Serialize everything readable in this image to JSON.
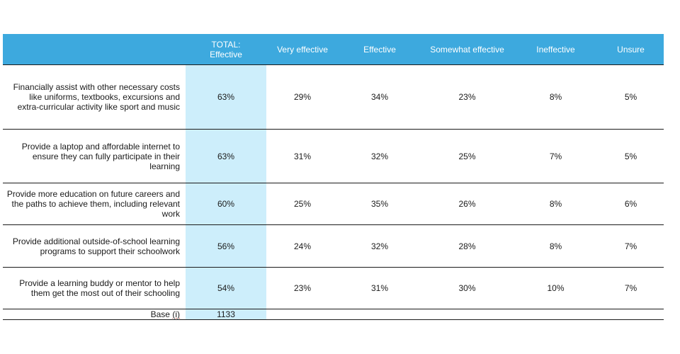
{
  "chart_data": {
    "type": "table",
    "columns": [
      "",
      "TOTAL:\nEffective",
      "Very effective",
      "Effective",
      "Somewhat effective",
      "Ineffective",
      "Unsure"
    ],
    "rows": [
      {
        "label": "Financially assist with other necessary costs like uniforms, textbooks, excursions and extra-curricular activity like sport and music",
        "values": [
          "63%",
          "29%",
          "34%",
          "23%",
          "8%",
          "5%"
        ]
      },
      {
        "label": "Provide a laptop and affordable internet to ensure they can fully participate in their learning",
        "values": [
          "63%",
          "31%",
          "32%",
          "25%",
          "7%",
          "5%"
        ]
      },
      {
        "label": "Provide more education on future careers and the paths to achieve them, including relevant work",
        "values": [
          "60%",
          "25%",
          "35%",
          "26%",
          "8%",
          "6%"
        ]
      },
      {
        "label": "Provide additional outside-of-school learning programs to support their schoolwork",
        "values": [
          "56%",
          "24%",
          "32%",
          "28%",
          "8%",
          "7%"
        ]
      },
      {
        "label": "Provide a learning buddy or mentor to help them get the most out of their schooling",
        "values": [
          "54%",
          "23%",
          "31%",
          "30%",
          "10%",
          "7%"
        ]
      }
    ],
    "base": {
      "label": "Base",
      "info": "(i)",
      "value": "1133"
    }
  },
  "colors": {
    "header_bg": "#3da9de",
    "header_text": "#ffffff",
    "total_column_bg": "#cdeefb",
    "rule": "#1a1a1a"
  }
}
